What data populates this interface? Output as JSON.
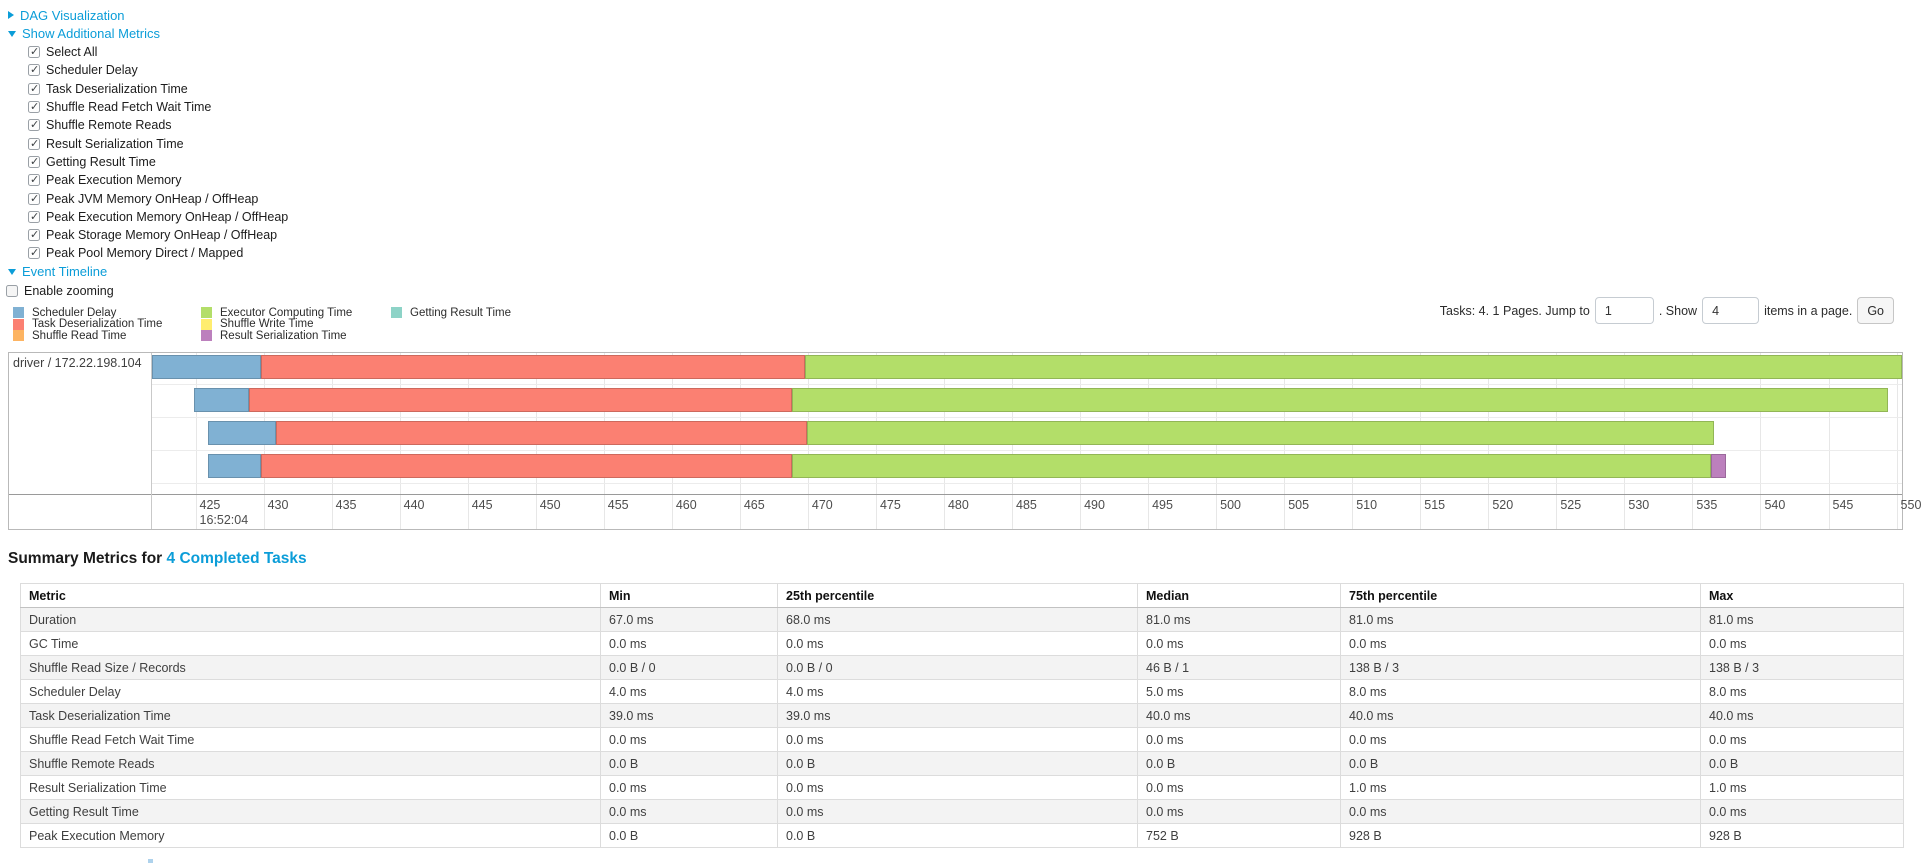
{
  "accent": {
    "link_color": "#0b9dd8"
  },
  "controls": {
    "dag_toggle": "DAG Visualization",
    "metrics_toggle": "Show Additional Metrics",
    "metric_options": [
      "Select All",
      "Scheduler Delay",
      "Task Deserialization Time",
      "Shuffle Read Fetch Wait Time",
      "Shuffle Remote Reads",
      "Result Serialization Time",
      "Getting Result Time",
      "Peak Execution Memory",
      "Peak JVM Memory OnHeap / OffHeap",
      "Peak Execution Memory OnHeap / OffHeap",
      "Peak Storage Memory OnHeap / OffHeap",
      "Peak Pool Memory Direct / Mapped"
    ],
    "metric_options_checked": true,
    "timeline_toggle": "Event Timeline",
    "enable_zooming_label": "Enable zooming",
    "enable_zooming_checked": false
  },
  "legend_columns": [
    [
      {
        "label": "Scheduler Delay",
        "color": "#80B1D3"
      },
      {
        "label": "Task Deserialization Time",
        "color": "#FB8072"
      },
      {
        "label": "Shuffle Read Time",
        "color": "#FDB462"
      }
    ],
    [
      {
        "label": "Executor Computing Time",
        "color": "#B3DE69"
      },
      {
        "label": "Shuffle Write Time",
        "color": "#FFED6F"
      },
      {
        "label": "Result Serialization Time",
        "color": "#BC80BD"
      }
    ],
    [
      {
        "label": "Getting Result Time",
        "color": "#8DD3C7"
      }
    ]
  ],
  "pagination": {
    "prefix": "Tasks: 4. 1 Pages. Jump to",
    "page_value": "1",
    "mid": ". Show",
    "page_size": "4",
    "suffix": "items in a page.",
    "go_label": "Go"
  },
  "timeline": {
    "row_label": "driver / 172.22.198.104",
    "axis_major_label": "16:52:04",
    "t_start": 421.8,
    "t_end": 550.4,
    "ticks": [
      425,
      430,
      435,
      440,
      445,
      450,
      455,
      460,
      465,
      470,
      475,
      480,
      485,
      490,
      495,
      500,
      505,
      510,
      515,
      520,
      525,
      530,
      535,
      540,
      545,
      550
    ],
    "colors": {
      "scheduler_delay": "#80B1D3",
      "deserialization": "#FB8072",
      "shuffle_read": "#FDB462",
      "computing": "#B3DE69",
      "shuffle_write": "#FFED6F",
      "serialization": "#BC80BD",
      "getting_result": "#8DD3C7"
    },
    "tasks": [
      {
        "start": 421.8,
        "scheduler_delay_end": 429.8,
        "deserialization_end": 469.8,
        "computing_end": 550.4,
        "serialization_end": null
      },
      {
        "start": 424.9,
        "scheduler_delay_end": 428.9,
        "deserialization_end": 468.8,
        "computing_end": 549.4,
        "serialization_end": null
      },
      {
        "start": 425.9,
        "scheduler_delay_end": 430.9,
        "deserialization_end": 469.9,
        "computing_end": 536.6,
        "serialization_end": null
      },
      {
        "start": 425.9,
        "scheduler_delay_end": 429.8,
        "deserialization_end": 468.8,
        "computing_end": 536.4,
        "serialization_end": 537.5
      }
    ]
  },
  "summary_title": {
    "prefix": "Summary Metrics for",
    "link": "4 Completed Tasks"
  },
  "summary_table": {
    "headers": [
      "Metric",
      "Min",
      "25th percentile",
      "Median",
      "75th percentile",
      "Max"
    ],
    "rows": [
      [
        "Duration",
        "67.0 ms",
        "68.0 ms",
        "81.0 ms",
        "81.0 ms",
        "81.0 ms"
      ],
      [
        "GC Time",
        "0.0 ms",
        "0.0 ms",
        "0.0 ms",
        "0.0 ms",
        "0.0 ms"
      ],
      [
        "Shuffle Read Size / Records",
        "0.0 B / 0",
        "0.0 B / 0",
        "46 B / 1",
        "138 B / 3",
        "138 B / 3"
      ],
      [
        "Scheduler Delay",
        "4.0 ms",
        "4.0 ms",
        "5.0 ms",
        "8.0 ms",
        "8.0 ms"
      ],
      [
        "Task Deserialization Time",
        "39.0 ms",
        "39.0 ms",
        "40.0 ms",
        "40.0 ms",
        "40.0 ms"
      ],
      [
        "Shuffle Read Fetch Wait Time",
        "0.0 ms",
        "0.0 ms",
        "0.0 ms",
        "0.0 ms",
        "0.0 ms"
      ],
      [
        "Shuffle Remote Reads",
        "0.0 B",
        "0.0 B",
        "0.0 B",
        "0.0 B",
        "0.0 B"
      ],
      [
        "Result Serialization Time",
        "0.0 ms",
        "0.0 ms",
        "0.0 ms",
        "1.0 ms",
        "1.0 ms"
      ],
      [
        "Getting Result Time",
        "0.0 ms",
        "0.0 ms",
        "0.0 ms",
        "0.0 ms",
        "0.0 ms"
      ],
      [
        "Peak Execution Memory",
        "0.0 B",
        "0.0 B",
        "752 B",
        "928 B",
        "928 B"
      ]
    ]
  }
}
